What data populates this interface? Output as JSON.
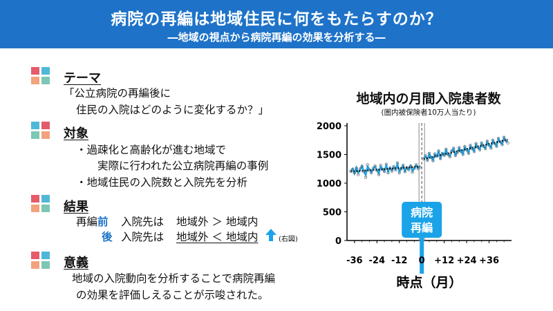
{
  "header": {
    "title": "病院の再編は地域住民に何をもたらすのか？",
    "subtitle": "―地域の視点から病院再編の効果を分析する―"
  },
  "sections": {
    "theme": {
      "title": "テーマ",
      "lines": [
        "「公立病院の再編後に",
        "住民の入院はどのように変化するか？」"
      ]
    },
    "target": {
      "title": "対象",
      "bullets": [
        "過疎化と高齢化が進む地域で",
        "実際に行われた公立病院再編の事例",
        "地域住民の入院数と入院先を分析"
      ]
    },
    "result": {
      "title": "結果",
      "row1": {
        "prefix": "再編",
        "when": "前",
        "label": "入院先は",
        "value": "地域外 ＞ 地域内"
      },
      "row2": {
        "when": "後",
        "label": "入院先は",
        "value": "地域外 ＜ 地域内",
        "note": "(右図)"
      }
    },
    "significance": {
      "title": "意義",
      "lines": [
        "地域の入院動向を分析することで病院再編",
        "の効果を評価しえることが示唆された。"
      ]
    }
  },
  "colors": {
    "accent": "#1e73c8",
    "light_blue": "#1aa3e8",
    "icon": [
      "#e45b6b",
      "#4fb8d8",
      "#f2a37d",
      "#7dc7b4"
    ]
  },
  "chart_data": {
    "type": "line",
    "title": "地域内の月間入院患者数",
    "subtitle": "(圏内被保険者10万人当たり)",
    "xlabel": "時点（月）",
    "ylabel": "",
    "x_ticks": [
      "-36",
      "-24",
      "-12",
      "0",
      "+12",
      "+24",
      "+36"
    ],
    "y_ticks": [
      "0",
      "500",
      "1000",
      "1500",
      "2000"
    ],
    "xlim": [
      -40,
      48
    ],
    "ylim": [
      0,
      2000
    ],
    "annotation": "病院\n再編",
    "annotation_lines": [
      "病院",
      "再編"
    ],
    "intervention_x": 0,
    "series": [
      {
        "kind": "observed",
        "x": [
          -38,
          -37,
          -36,
          -35,
          -34,
          -33,
          -32,
          -31,
          -30,
          -29,
          -28,
          -27,
          -26,
          -25,
          -24,
          -23,
          -22,
          -21,
          -20,
          -19,
          -18,
          -17,
          -16,
          -15,
          -14,
          -13,
          -12,
          -11,
          -10,
          -9,
          -8,
          -7,
          -6,
          -5,
          -4,
          -3,
          -2,
          -1,
          1,
          2,
          3,
          4,
          5,
          6,
          7,
          8,
          9,
          10,
          11,
          12,
          13,
          14,
          15,
          16,
          17,
          18,
          19,
          20,
          21,
          22,
          23,
          24,
          25,
          26,
          27,
          28,
          29,
          30,
          31,
          32,
          33,
          34,
          35,
          36,
          37,
          38,
          39,
          40,
          41,
          42,
          43,
          44,
          45,
          46
        ],
        "y": [
          1210,
          1240,
          1180,
          1260,
          1150,
          1250,
          1290,
          1200,
          1100,
          1320,
          1230,
          1180,
          1260,
          1300,
          1220,
          1150,
          1310,
          1240,
          1200,
          1330,
          1180,
          1260,
          1210,
          1290,
          1230,
          1350,
          1180,
          1250,
          1310,
          1200,
          1270,
          1230,
          1300,
          1190,
          1260,
          1320,
          1250,
          1280,
          1420,
          1480,
          1400,
          1520,
          1450,
          1390,
          1510,
          1470,
          1560,
          1430,
          1520,
          1480,
          1590,
          1500,
          1460,
          1560,
          1610,
          1480,
          1530,
          1620,
          1550,
          1500,
          1640,
          1580,
          1520,
          1660,
          1600,
          1550,
          1690,
          1620,
          1580,
          1700,
          1640,
          1600,
          1730,
          1660,
          1610,
          1750,
          1690,
          1640,
          1780,
          1720,
          1670,
          1800,
          1740,
          1700
        ]
      },
      {
        "kind": "fitted",
        "x": [
          -38,
          -37,
          -36,
          -35,
          -34,
          -33,
          -32,
          -31,
          -30,
          -29,
          -28,
          -27,
          -26,
          -25,
          -24,
          -23,
          -22,
          -21,
          -20,
          -19,
          -18,
          -17,
          -16,
          -15,
          -14,
          -13,
          -12,
          -11,
          -10,
          -9,
          -8,
          -7,
          -6,
          -5,
          -4,
          -3,
          -2,
          -1,
          1,
          2,
          3,
          4,
          5,
          6,
          7,
          8,
          9,
          10,
          11,
          12,
          13,
          14,
          15,
          16,
          17,
          18,
          19,
          20,
          21,
          22,
          23,
          24,
          25,
          26,
          27,
          28,
          29,
          30,
          31,
          32,
          33,
          34,
          35,
          36,
          37,
          38,
          39,
          40,
          41,
          42,
          43,
          44,
          45,
          46
        ],
        "y": [
          1200,
          1250,
          1170,
          1270,
          1180,
          1230,
          1300,
          1210,
          1140,
          1290,
          1240,
          1190,
          1250,
          1290,
          1230,
          1170,
          1290,
          1250,
          1210,
          1310,
          1200,
          1270,
          1220,
          1280,
          1240,
          1330,
          1200,
          1250,
          1300,
          1210,
          1270,
          1240,
          1300,
          1210,
          1260,
          1310,
          1260,
          1290,
          1430,
          1470,
          1410,
          1510,
          1450,
          1400,
          1500,
          1470,
          1550,
          1440,
          1520,
          1490,
          1580,
          1500,
          1470,
          1560,
          1600,
          1490,
          1540,
          1610,
          1550,
          1510,
          1630,
          1580,
          1530,
          1650,
          1600,
          1560,
          1680,
          1620,
          1590,
          1690,
          1640,
          1610,
          1720,
          1660,
          1620,
          1740,
          1690,
          1650,
          1770,
          1710,
          1680,
          1790,
          1740,
          1710
        ]
      },
      {
        "kind": "trend",
        "x": [
          -38,
          -1,
          1,
          46
        ],
        "y": [
          1200,
          1290,
          1420,
          1760
        ]
      }
    ]
  }
}
